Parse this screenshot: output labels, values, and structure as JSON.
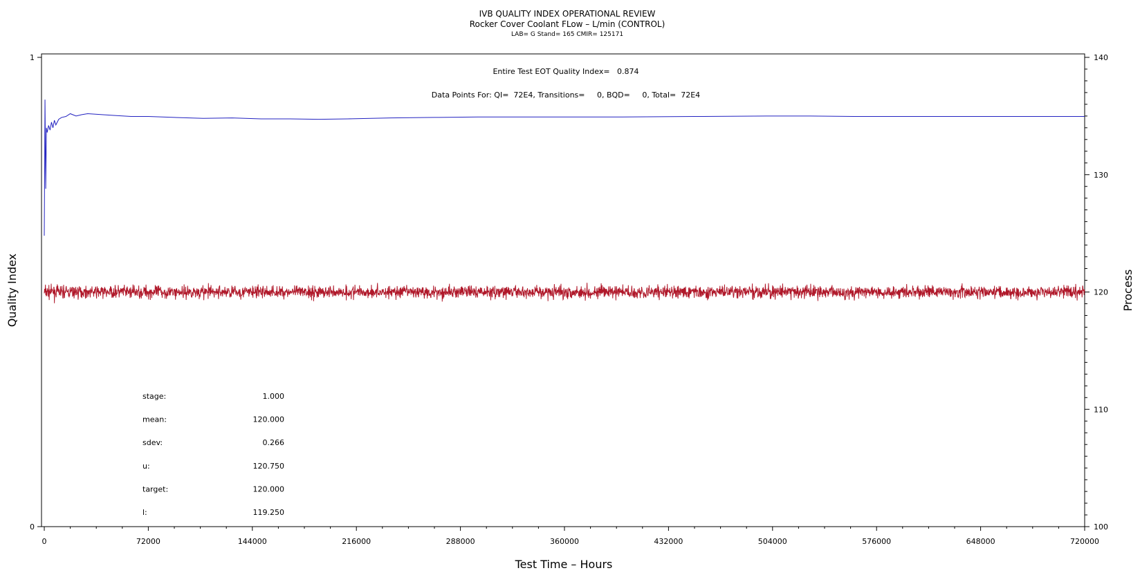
{
  "chart_data": {
    "type": "line",
    "title": "IVB QUALITY INDEX OPERATIONAL REVIEW",
    "subtitle": "Rocker Cover Coolant FLow – L/min (CONTROL)",
    "subtitle2": "LAB= G Stand= 165 CMIR= 125171",
    "annotation_qi": "Entire Test EOT Quality Index=   0.874",
    "annotation_points": "Data Points For: QI=  72E4, Transitions=     0, BQD=     0, Total=  72E4",
    "xlabel": "Test Time – Hours",
    "ylabel_left": "Quality Index",
    "ylabel_right": "Process",
    "x_ticks": [
      "0",
      "72000",
      "144000",
      "216000",
      "288000",
      "360000",
      "432000",
      "504000",
      "576000",
      "648000",
      "720000"
    ],
    "y_left_ticks": [
      "0",
      "1"
    ],
    "y_right_ticks": [
      "100",
      "110",
      "120",
      "130",
      "140"
    ],
    "xlim": [
      0,
      720000
    ],
    "ylim_left": [
      0,
      1
    ],
    "ylim_right": [
      100,
      140
    ],
    "grid": false,
    "series": [
      {
        "axis": "left",
        "color": "#2020c0",
        "x": [
          0,
          500,
          1000,
          1500,
          2000,
          3000,
          4000,
          5000,
          6000,
          7000,
          8000,
          10000,
          12000,
          15000,
          18000,
          22000,
          26000,
          30000,
          40000,
          50000,
          60000,
          72000,
          90000,
          110000,
          130000,
          150000,
          170000,
          190000,
          210000,
          240000,
          270000,
          300000,
          330000,
          360000,
          400000,
          450000,
          500000,
          530000,
          560000,
          600000,
          648000,
          720000
        ],
        "y": [
          0.62,
          0.91,
          0.72,
          0.85,
          0.84,
          0.855,
          0.845,
          0.862,
          0.85,
          0.866,
          0.856,
          0.868,
          0.872,
          0.874,
          0.88,
          0.875,
          0.878,
          0.88,
          0.878,
          0.876,
          0.874,
          0.874,
          0.872,
          0.87,
          0.871,
          0.869,
          0.869,
          0.868,
          0.869,
          0.871,
          0.872,
          0.873,
          0.873,
          0.873,
          0.873,
          0.874,
          0.875,
          0.875,
          0.874,
          0.874,
          0.874,
          0.874
        ]
      },
      {
        "axis": "right",
        "color": "#b0182a",
        "x_range": [
          0,
          720000
        ],
        "mean": 120.0,
        "sdev": 0.266
      }
    ]
  },
  "stats": [
    {
      "label": "stage:",
      "value": "1.000"
    },
    {
      "label": "mean:",
      "value": "120.000"
    },
    {
      "label": "sdev:",
      "value": "0.266"
    },
    {
      "label": "u:",
      "value": "120.750"
    },
    {
      "label": "target:",
      "value": "120.000"
    },
    {
      "label": "l:",
      "value": "119.250"
    }
  ]
}
